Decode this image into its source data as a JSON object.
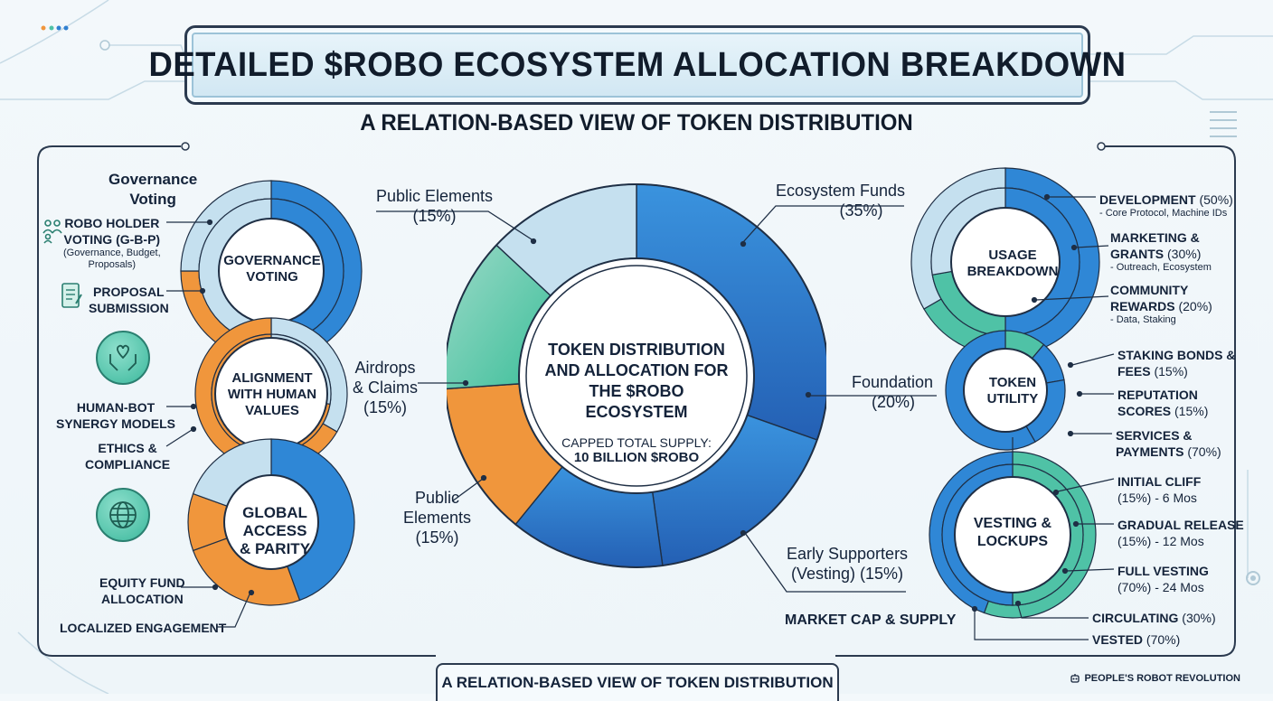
{
  "title": "DETAILED $ROBO ECOSYSTEM ALLOCATION BREAKDOWN",
  "subtitle": "A RELATION-BASED VIEW OF TOKEN DISTRIBUTION",
  "footer": "A RELATION-BASED VIEW OF TOKEN DISTRIBUTION",
  "brand": "PEOPLE'S ROBOT REVOLUTION",
  "colors": {
    "blue": "#2f7fd0",
    "light_blue": "#b9d9ec",
    "teal": "#4fc2a6",
    "orange": "#f0963c",
    "navy": "#1f2f45"
  },
  "center": {
    "title_line1": "TOKEN DISTRIBUTION",
    "title_line2": "AND ALLOCATION FOR",
    "title_line3": "THE $ROBO ECOSYSTEM",
    "supply_label": "CAPPED TOTAL SUPPLY:",
    "supply_value": "10 BILLION $ROBO"
  },
  "chart_data": {
    "type": "pie",
    "categories": [
      "Ecosystem Funds",
      "Foundation",
      "Early Supporters (Vesting)",
      "Public Elements",
      "Airdrops & Claims",
      "Public Elements"
    ],
    "values": [
      35,
      20,
      15,
      15,
      15,
      15
    ],
    "slice_labels": [
      {
        "name": "Ecosystem Funds",
        "pct": "(35%)"
      },
      {
        "name": "Foundation",
        "pct": "(20%)"
      },
      {
        "name": "Early Supporters",
        "name2": "(Vesting) (15%)"
      },
      {
        "name": "Public",
        "name2": "Elements",
        "pct": "(15%)"
      },
      {
        "name": "Airdrops",
        "name2": "& Claims",
        "pct": "(15%)"
      },
      {
        "name": "Public Elements",
        "pct": "(15%)"
      }
    ]
  },
  "left": {
    "header_line1": "Governance",
    "header_line2": "Voting",
    "ring1": {
      "line1": "GOVERNANCE",
      "line2": "VOTING"
    },
    "ring2": {
      "line1": "ALIGNMENT",
      "line2": "WITH HUMAN",
      "line3": "VALUES"
    },
    "ring3": {
      "line1": "GLOBAL",
      "line2": "ACCESS",
      "line3": "& PARITY"
    },
    "robo_holder": {
      "line1": "ROBO HOLDER",
      "line2": "VOTING (G-B-P)",
      "note1": "(Governance, Budget,",
      "note2": "Proposals)"
    },
    "proposal": {
      "line1": "PROPOSAL",
      "line2": "SUBMISSION"
    },
    "synergy": {
      "line1": "HUMAN-BOT",
      "line2": "SYNERGY MODELS"
    },
    "ethics": {
      "line1": "ETHICS &",
      "line2": "COMPLIANCE"
    },
    "equity": {
      "line1": "EQUITY FUND",
      "line2": "ALLOCATION"
    },
    "localized": "LOCALIZED ENGAGEMENT",
    "icons": [
      "people-icon",
      "document-icon",
      "heart-hands-icon",
      "globe-icon"
    ]
  },
  "right": {
    "ring1": {
      "line1": "USAGE",
      "line2": "BREAKDOWN"
    },
    "ring2": {
      "line1": "TOKEN",
      "line2": "UTILITY"
    },
    "ring3": {
      "line1": "VESTING &",
      "line2": "LOCKUPS"
    },
    "development": {
      "name": "DEVELOPMENT",
      "pct": "(50%)",
      "note": "- Core Protocol, Machine IDs"
    },
    "marketing": {
      "line1": "MARKETING &",
      "line2": "GRANTS",
      "pct": "(30%)",
      "note": "- Outreach, Ecosystem"
    },
    "community": {
      "line1": "COMMUNITY",
      "line2": "REWARDS",
      "pct": "(20%)",
      "note": "- Data, Staking"
    },
    "staking": {
      "line1": "STAKING BONDS &",
      "line2": "FEES",
      "pct": "(15%)"
    },
    "reputation": {
      "line1": "REPUTATION",
      "line2": "SCORES",
      "pct": "(15%)"
    },
    "services": {
      "line1": "SERVICES &",
      "line2": "PAYMENTS",
      "pct": "(70%)"
    },
    "cliff": {
      "line1": "INITIAL CLIFF",
      "line2": "(15%) - 6 Mos"
    },
    "gradual": {
      "line1": "GRADUAL RELEASE",
      "line2": "(15%) - 12 Mos"
    },
    "full": {
      "line1": "FULL VESTING",
      "line2": "(70%) - 24 Mos"
    },
    "circulating": {
      "name": "CIRCULATING",
      "pct": "(30%)"
    },
    "vested": {
      "name": "VESTED",
      "pct": "(70%)"
    },
    "market_cap": "MARKET CAP & SUPPLY"
  }
}
